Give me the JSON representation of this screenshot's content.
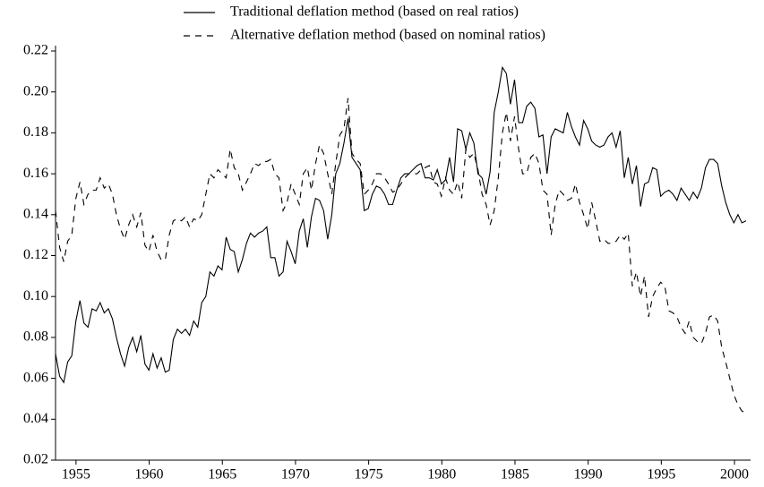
{
  "chart_data": {
    "type": "line",
    "legend": "top",
    "xlim": [
      1953.6,
      2001.1
    ],
    "ylim": [
      0.02,
      0.22
    ],
    "xticks": [
      1955,
      1960,
      1965,
      1970,
      1975,
      1980,
      1985,
      1990,
      1995,
      2000
    ],
    "yticks": [
      0.02,
      0.04,
      0.06,
      0.08,
      {
        "value": 0.1,
        "label": "0.10"
      },
      0.12,
      0.14,
      0.16,
      0.18,
      {
        "value": 0.2,
        "label": "0.20"
      },
      0.22
    ],
    "x": [
      1953.6,
      1953.88,
      1954.16,
      1954.43,
      1954.71,
      1954.99,
      1955.27,
      1955.54,
      1955.82,
      1956.1,
      1956.38,
      1956.65,
      1956.93,
      1957.21,
      1957.49,
      1957.76,
      1958.04,
      1958.32,
      1958.6,
      1958.87,
      1959.15,
      1959.43,
      1959.71,
      1959.98,
      1960.26,
      1960.54,
      1960.82,
      1961.1,
      1961.37,
      1961.65,
      1961.93,
      1962.21,
      1962.48,
      1962.76,
      1963.04,
      1963.32,
      1963.59,
      1963.87,
      1964.15,
      1964.43,
      1964.7,
      1964.98,
      1965.26,
      1965.54,
      1965.81,
      1966.09,
      1966.37,
      1966.65,
      1966.92,
      1967.2,
      1967.48,
      1967.76,
      1968.04,
      1968.31,
      1968.59,
      1968.87,
      1969.15,
      1969.42,
      1969.7,
      1969.98,
      1970.26,
      1970.53,
      1970.81,
      1971.09,
      1971.37,
      1971.64,
      1971.92,
      1972.2,
      1972.48,
      1972.75,
      1973.03,
      1973.31,
      1973.59,
      1973.86,
      1974.14,
      1974.42,
      1974.7,
      1974.97,
      1975.25,
      1975.53,
      1975.81,
      1976.09,
      1976.36,
      1976.64,
      1976.92,
      1977.2,
      1977.47,
      1977.75,
      1978.03,
      1978.31,
      1978.58,
      1978.86,
      1979.14,
      1979.42,
      1979.69,
      1979.97,
      1980.25,
      1980.53,
      1980.8,
      1981.08,
      1981.36,
      1981.64,
      1981.91,
      1982.19,
      1982.47,
      1982.75,
      1983.03,
      1983.3,
      1983.58,
      1983.86,
      1984.14,
      1984.41,
      1984.69,
      1984.97,
      1985.25,
      1985.52,
      1985.8,
      1986.08,
      1986.36,
      1986.64,
      1986.91,
      1987.19,
      1987.47,
      1987.75,
      1988.02,
      1988.3,
      1988.58,
      1988.86,
      1989.13,
      1989.41,
      1989.69,
      1989.97,
      1990.24,
      1990.52,
      1990.8,
      1991.08,
      1991.36,
      1991.63,
      1991.91,
      1992.19,
      1992.47,
      1992.74,
      1993.02,
      1993.3,
      1993.58,
      1993.85,
      1994.13,
      1994.41,
      1994.69,
      1994.96,
      1995.24,
      1995.52,
      1995.8,
      1996.07,
      1996.35,
      1996.63,
      1996.91,
      1997.18,
      1997.46,
      1997.74,
      1998.02,
      1998.29,
      1998.57,
      1998.85,
      1999.13,
      1999.4,
      1999.68,
      1999.96,
      2000.24,
      2000.51,
      2000.79
    ],
    "series": [
      {
        "name": "Traditional deflation method (based on real ratios)",
        "color": "#000000",
        "line_style": "solid",
        "values": [
          0.072,
          0.061,
          0.058,
          0.068,
          0.071,
          0.088,
          0.098,
          0.087,
          0.085,
          0.094,
          0.093,
          0.097,
          0.092,
          0.094,
          0.089,
          0.08,
          0.072,
          0.066,
          0.075,
          0.08,
          0.073,
          0.081,
          0.067,
          0.064,
          0.072,
          0.065,
          0.07,
          0.063,
          0.064,
          0.079,
          0.084,
          0.082,
          0.084,
          0.081,
          0.088,
          0.085,
          0.097,
          0.1,
          0.112,
          0.11,
          0.115,
          0.113,
          0.129,
          0.123,
          0.122,
          0.112,
          0.118,
          0.126,
          0.131,
          0.129,
          0.131,
          0.132,
          0.134,
          0.119,
          0.119,
          0.11,
          0.112,
          0.127,
          0.122,
          0.116,
          0.132,
          0.138,
          0.124,
          0.139,
          0.148,
          0.147,
          0.142,
          0.128,
          0.14,
          0.16,
          0.165,
          0.175,
          0.187,
          0.168,
          0.165,
          0.162,
          0.142,
          0.143,
          0.15,
          0.154,
          0.153,
          0.15,
          0.145,
          0.145,
          0.152,
          0.158,
          0.16,
          0.16,
          0.162,
          0.164,
          0.165,
          0.158,
          0.158,
          0.157,
          0.162,
          0.155,
          0.157,
          0.168,
          0.156,
          0.182,
          0.181,
          0.172,
          0.18,
          0.175,
          0.16,
          0.158,
          0.15,
          0.161,
          0.19,
          0.2,
          0.212,
          0.209,
          0.194,
          0.206,
          0.185,
          0.185,
          0.193,
          0.195,
          0.192,
          0.178,
          0.179,
          0.16,
          0.178,
          0.182,
          0.181,
          0.18,
          0.19,
          0.183,
          0.178,
          0.174,
          0.186,
          0.182,
          0.176,
          0.174,
          0.173,
          0.174,
          0.178,
          0.18,
          0.173,
          0.181,
          0.158,
          0.168,
          0.155,
          0.164,
          0.144,
          0.155,
          0.156,
          0.163,
          0.162,
          0.149,
          0.151,
          0.152,
          0.15,
          0.147,
          0.153,
          0.15,
          0.147,
          0.151,
          0.148,
          0.153,
          0.163,
          0.167,
          0.167,
          0.165,
          0.154,
          0.146,
          0.14,
          0.136,
          0.14,
          0.136,
          0.137
        ]
      },
      {
        "name": "Alternative deflation method (based on nominal ratios)",
        "color": "#000000",
        "line_style": "dashed",
        "values": [
          0.142,
          0.124,
          0.117,
          0.127,
          0.13,
          0.148,
          0.156,
          0.145,
          0.15,
          0.152,
          0.152,
          0.158,
          0.153,
          0.155,
          0.15,
          0.14,
          0.133,
          0.128,
          0.135,
          0.14,
          0.134,
          0.141,
          0.125,
          0.122,
          0.13,
          0.122,
          0.118,
          0.118,
          0.13,
          0.137,
          0.138,
          0.137,
          0.139,
          0.134,
          0.138,
          0.137,
          0.14,
          0.15,
          0.16,
          0.158,
          0.162,
          0.16,
          0.158,
          0.172,
          0.163,
          0.16,
          0.152,
          0.156,
          0.16,
          0.165,
          0.164,
          0.166,
          0.166,
          0.167,
          0.16,
          0.158,
          0.142,
          0.146,
          0.155,
          0.15,
          0.145,
          0.16,
          0.163,
          0.152,
          0.165,
          0.174,
          0.17,
          0.16,
          0.15,
          0.165,
          0.179,
          0.182,
          0.197,
          0.17,
          0.167,
          0.165,
          0.15,
          0.152,
          0.155,
          0.16,
          0.16,
          0.158,
          0.155,
          0.151,
          0.152,
          0.155,
          0.158,
          0.16,
          0.16,
          0.16,
          0.162,
          0.163,
          0.164,
          0.156,
          0.155,
          0.149,
          0.158,
          0.152,
          0.15,
          0.156,
          0.148,
          0.172,
          0.168,
          0.17,
          0.162,
          0.15,
          0.145,
          0.135,
          0.142,
          0.158,
          0.18,
          0.19,
          0.176,
          0.188,
          0.172,
          0.16,
          0.16,
          0.168,
          0.17,
          0.165,
          0.152,
          0.15,
          0.13,
          0.145,
          0.152,
          0.15,
          0.147,
          0.148,
          0.155,
          0.146,
          0.14,
          0.133,
          0.146,
          0.137,
          0.127,
          0.128,
          0.126,
          0.126,
          0.127,
          0.13,
          0.128,
          0.131,
          0.105,
          0.112,
          0.1,
          0.11,
          0.09,
          0.1,
          0.104,
          0.107,
          0.105,
          0.093,
          0.092,
          0.09,
          0.085,
          0.082,
          0.088,
          0.08,
          0.078,
          0.077,
          0.082,
          0.09,
          0.091,
          0.088,
          0.075,
          0.068,
          0.06,
          0.052,
          0.047,
          0.044,
          0.043
        ]
      }
    ]
  }
}
